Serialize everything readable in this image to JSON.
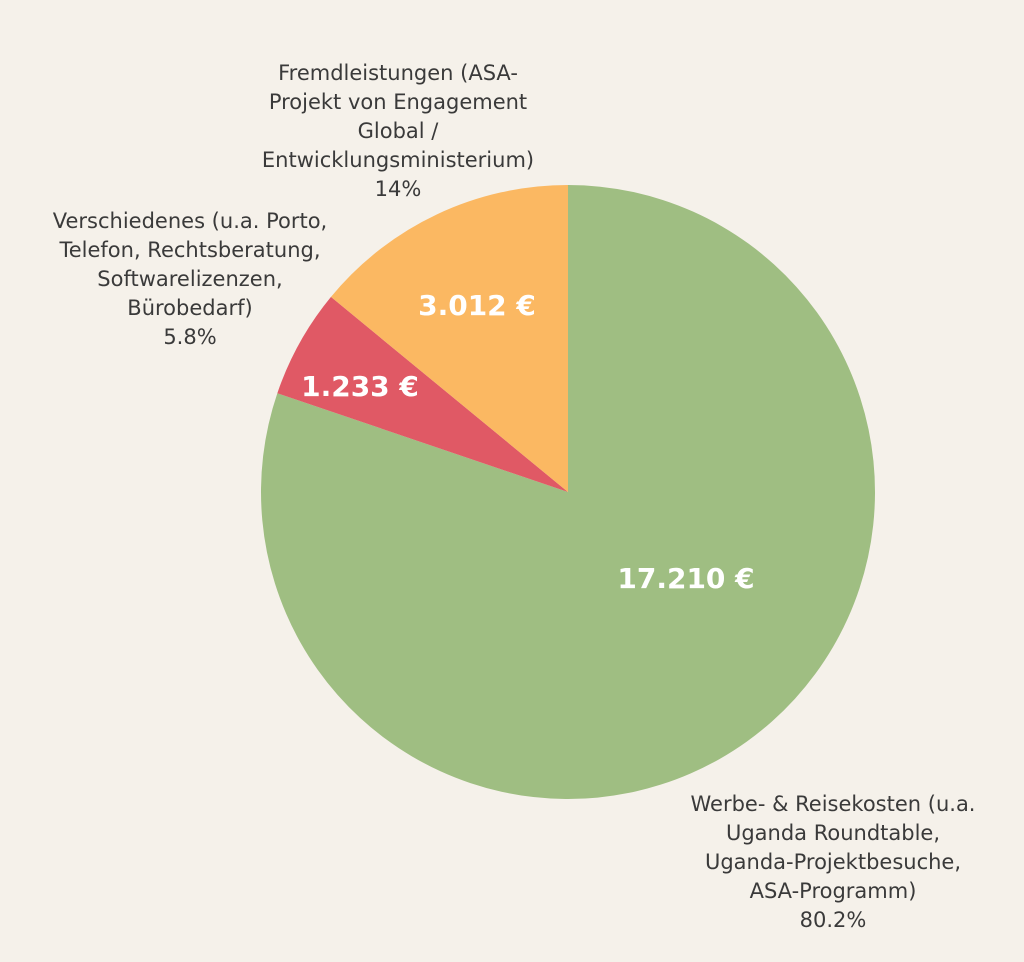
{
  "chart_data": {
    "type": "pie",
    "title": "",
    "start_angle_deg": 0,
    "direction": "clockwise",
    "slices": [
      {
        "label_lines": [
          "Werbe- & Reisekosten (u.a.",
          "Uganda Roundtable,",
          "Uganda-Projektbesuche,",
          "ASA-Programm)"
        ],
        "value": 17210,
        "value_label": "17.210 €",
        "percent": "80.2%",
        "color": "#9fbe82"
      },
      {
        "label_lines": [
          "Verschiedenes (u.a. Porto,",
          "Telefon, Rechtsberatung,",
          "Softwarelizenzen,",
          "Bürobedarf)"
        ],
        "value": 1233,
        "value_label": "1.233 €",
        "percent": "5.8%",
        "color": "#e05965"
      },
      {
        "label_lines": [
          "Fremdleistungen (ASA-",
          "Projekt von Engagement",
          "Global /",
          "Entwicklungsministerium)"
        ],
        "value": 3012,
        "value_label": "3.012 €",
        "percent": "14%",
        "color": "#fbb862"
      }
    ]
  }
}
